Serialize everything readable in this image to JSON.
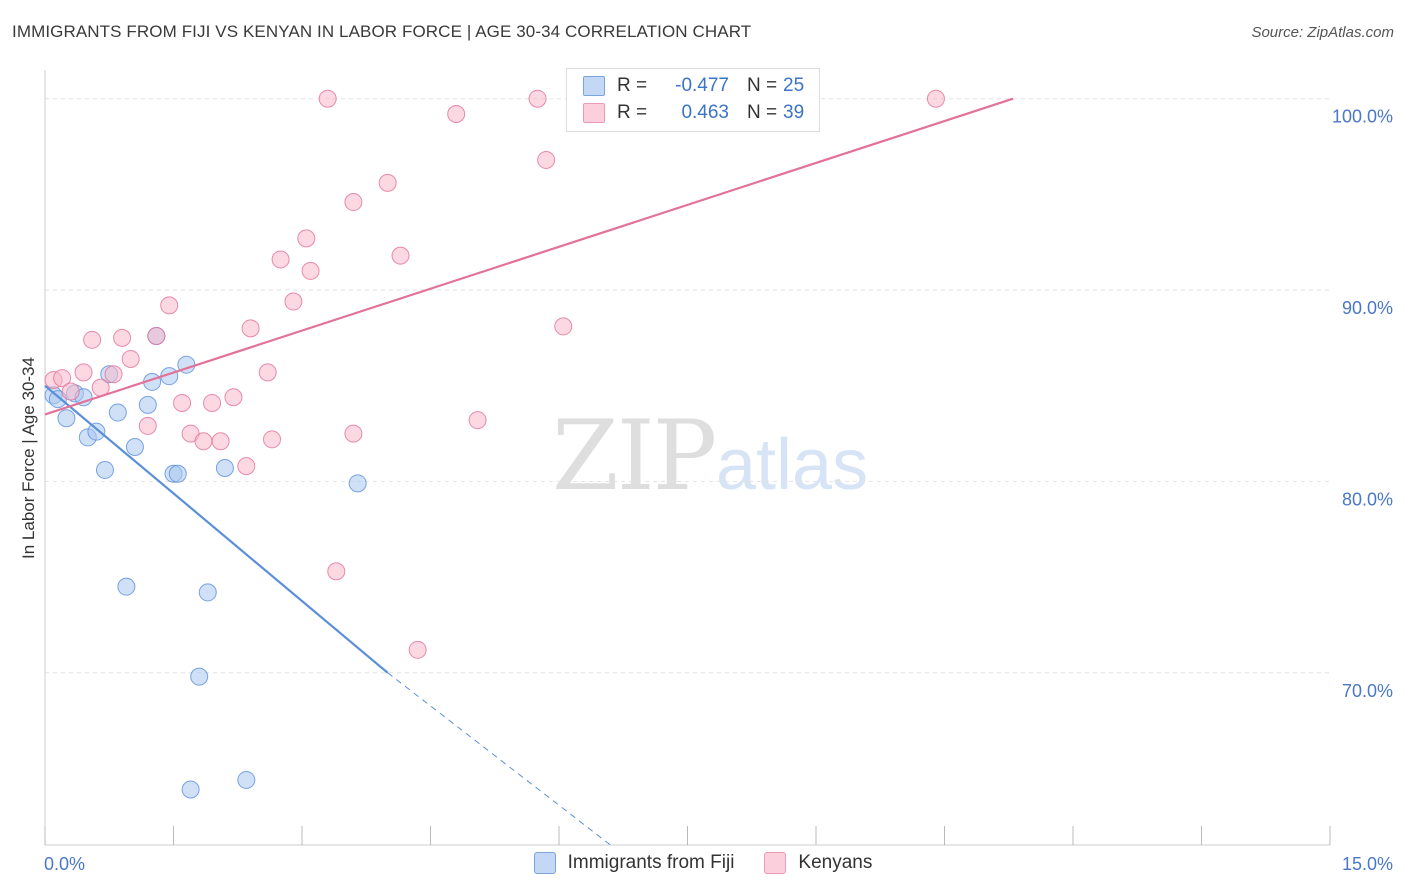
{
  "title": "IMMIGRANTS FROM FIJI VS KENYAN IN LABOR FORCE | AGE 30-34 CORRELATION CHART",
  "source": "Source: ZipAtlas.com",
  "watermark": {
    "zip": "ZIP",
    "atlas": "atlas"
  },
  "legend_top": [
    {
      "r_label": "R =",
      "r_value": "-0.477",
      "n_label": "N =",
      "n_value": "25",
      "color": "#aac8f0"
    },
    {
      "r_label": "R =",
      "r_value": "0.463",
      "n_label": "N =",
      "n_value": "39",
      "color": "#f7b8cb"
    }
  ],
  "legend_bottom": [
    {
      "label": "Immigrants from Fiji",
      "color": "#aac8f0"
    },
    {
      "label": "Kenyans",
      "color": "#f7b8cb"
    }
  ],
  "chart_data": {
    "type": "scatter",
    "ylabel": "In Labor Force | Age 30-34",
    "xlim": [
      0,
      15
    ],
    "ylim": [
      61.0,
      101.5
    ],
    "x_tick_labels": {
      "left": "0.0%",
      "right": "15.0%"
    },
    "y_ticks": [
      {
        "value": 100,
        "label": "100.0%"
      },
      {
        "value": 90,
        "label": "90.0%"
      },
      {
        "value": 80,
        "label": "80.0%"
      },
      {
        "value": 70,
        "label": "70.0%"
      }
    ],
    "series": [
      {
        "name": "Immigrants from Fiji",
        "color": "#5b8fd9",
        "fill": "#aac8f0",
        "points": [
          [
            0.1,
            84.5
          ],
          [
            0.15,
            84.3
          ],
          [
            0.25,
            83.3
          ],
          [
            0.35,
            84.6
          ],
          [
            0.45,
            84.4
          ],
          [
            0.5,
            82.3
          ],
          [
            0.6,
            82.6
          ],
          [
            0.7,
            80.6
          ],
          [
            0.75,
            85.6
          ],
          [
            0.85,
            83.6
          ],
          [
            0.95,
            74.5
          ],
          [
            1.05,
            81.8
          ],
          [
            1.2,
            84.0
          ],
          [
            1.25,
            85.2
          ],
          [
            1.3,
            87.6
          ],
          [
            1.45,
            85.5
          ],
          [
            1.5,
            80.4
          ],
          [
            1.55,
            80.4
          ],
          [
            1.65,
            86.1
          ],
          [
            1.8,
            69.8
          ],
          [
            1.9,
            74.2
          ],
          [
            2.1,
            80.7
          ],
          [
            3.65,
            79.9
          ],
          [
            1.7,
            63.9
          ],
          [
            2.35,
            64.4
          ]
        ],
        "trend": {
          "x0": 0.0,
          "y0": 85.0,
          "x1": 4.0,
          "y1": 70.0,
          "dash_x1": 6.6,
          "dash_y1": 61.0
        }
      },
      {
        "name": "Kenyans",
        "color": "#e2729a",
        "fill": "#f7b8cb",
        "points": [
          [
            0.1,
            85.3
          ],
          [
            0.2,
            85.4
          ],
          [
            0.3,
            84.7
          ],
          [
            0.45,
            85.7
          ],
          [
            0.55,
            87.4
          ],
          [
            0.65,
            84.9
          ],
          [
            0.8,
            85.6
          ],
          [
            0.9,
            87.5
          ],
          [
            1.0,
            86.4
          ],
          [
            1.2,
            82.9
          ],
          [
            1.3,
            87.6
          ],
          [
            1.45,
            89.2
          ],
          [
            1.6,
            84.1
          ],
          [
            1.7,
            82.5
          ],
          [
            1.85,
            82.1
          ],
          [
            1.95,
            84.1
          ],
          [
            2.05,
            82.1
          ],
          [
            2.2,
            84.4
          ],
          [
            2.35,
            80.8
          ],
          [
            2.4,
            88.0
          ],
          [
            2.6,
            85.7
          ],
          [
            2.65,
            82.2
          ],
          [
            2.75,
            91.6
          ],
          [
            2.9,
            89.4
          ],
          [
            3.05,
            92.7
          ],
          [
            3.1,
            91.0
          ],
          [
            3.3,
            100.0
          ],
          [
            3.4,
            75.3
          ],
          [
            3.6,
            82.5
          ],
          [
            3.6,
            94.6
          ],
          [
            4.0,
            95.6
          ],
          [
            4.15,
            91.8
          ],
          [
            4.35,
            71.2
          ],
          [
            4.8,
            99.2
          ],
          [
            5.05,
            83.2
          ],
          [
            5.75,
            100.0
          ],
          [
            5.85,
            96.8
          ],
          [
            6.05,
            88.1
          ],
          [
            10.4,
            100.0
          ]
        ],
        "trend": {
          "x0": 0.0,
          "y0": 83.5,
          "x1": 11.3,
          "y1": 100.0
        }
      }
    ],
    "grid": true
  }
}
